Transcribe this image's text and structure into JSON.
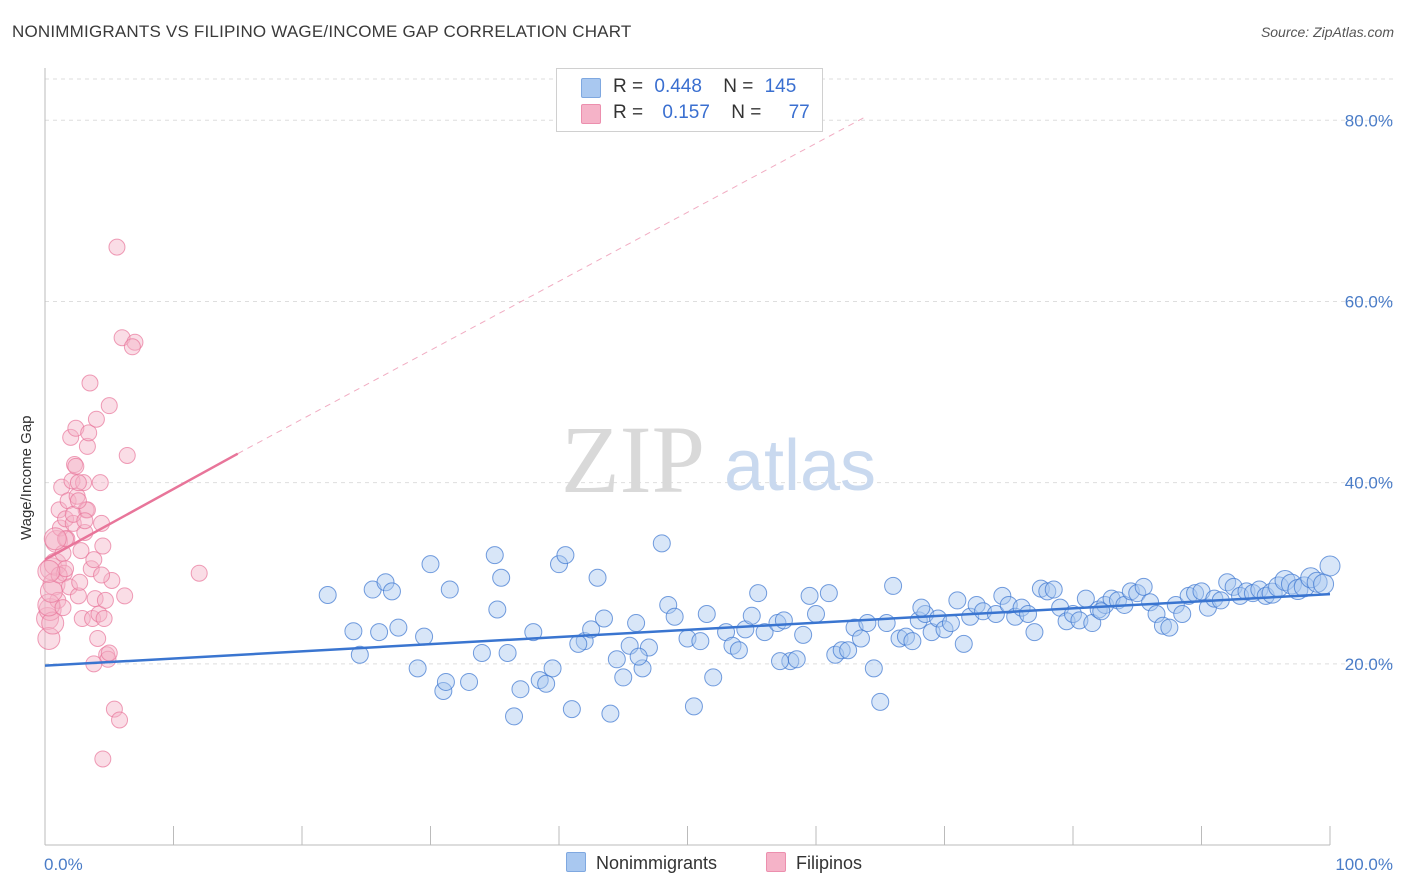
{
  "header": {
    "title": "NONIMMIGRANTS VS FILIPINO WAGE/INCOME GAP CORRELATION CHART",
    "source": "Source: ZipAtlas.com"
  },
  "watermark": {
    "zip": "ZIP",
    "atlas": "atlas"
  },
  "legend": {
    "rows": [
      {
        "r_label": "R =",
        "r_value": "0.448",
        "n_label": "N =",
        "n_value": "145",
        "color": "#a9c8f0"
      },
      {
        "r_label": "R =",
        "r_value": "0.157",
        "n_label": "N =",
        "n_value": "77",
        "color": "#f5b3c8"
      }
    ]
  },
  "bottom_legend": {
    "series1": "Nonimmigrants",
    "series2": "Filipinos"
  },
  "chart_data": {
    "type": "scatter",
    "title": "NONIMMIGRANTS VS FILIPINO WAGE/INCOME GAP CORRELATION CHART",
    "ylabel": "Wage/Income Gap",
    "xlabel": "",
    "xlim": [
      0,
      100
    ],
    "ylim": [
      0,
      85
    ],
    "x_tick_labels": [
      "0.0%",
      "100.0%"
    ],
    "y_ticks": [
      20,
      40,
      60,
      80
    ],
    "y_tick_labels": [
      "20.0%",
      "40.0%",
      "60.0%",
      "80.0%"
    ],
    "grid": true,
    "colors": {
      "nonimmigrants": "#3a75d0",
      "filipinos": "#e8759a",
      "nonimmigrants_fill": "#a9c8f0",
      "filipinos_fill": "#f5b3c8"
    },
    "series": [
      {
        "name": "Nonimmigrants",
        "trend": {
          "x": [
            0,
            100
          ],
          "y": [
            19.8,
            27.7
          ]
        },
        "points": [
          [
            22,
            27.6
          ],
          [
            24,
            23.6
          ],
          [
            24.5,
            21
          ],
          [
            25.5,
            28.2
          ],
          [
            26,
            23.5
          ],
          [
            26.5,
            29
          ],
          [
            27,
            28
          ],
          [
            27.5,
            24
          ],
          [
            29,
            19.5
          ],
          [
            29.5,
            23
          ],
          [
            30,
            31
          ],
          [
            31,
            17
          ],
          [
            31.2,
            18
          ],
          [
            31.5,
            28.2
          ],
          [
            33,
            18
          ],
          [
            34,
            21.2
          ],
          [
            35,
            32
          ],
          [
            35.2,
            26
          ],
          [
            35.5,
            29.5
          ],
          [
            36,
            21.2
          ],
          [
            36.5,
            14.2
          ],
          [
            37,
            17.2
          ],
          [
            38,
            23.5
          ],
          [
            38.5,
            18.2
          ],
          [
            39,
            17.8
          ],
          [
            39.5,
            19.5
          ],
          [
            40,
            31
          ],
          [
            40.5,
            32
          ],
          [
            41,
            15
          ],
          [
            42,
            22.5
          ],
          [
            42.5,
            23.8
          ],
          [
            43,
            29.5
          ],
          [
            43.5,
            25
          ],
          [
            44,
            14.5
          ],
          [
            44.5,
            20.5
          ],
          [
            45,
            18.5
          ],
          [
            45.5,
            22
          ],
          [
            46,
            24.5
          ],
          [
            46.5,
            19.5
          ],
          [
            47,
            21.8
          ],
          [
            48,
            33.3
          ],
          [
            48.5,
            26.5
          ],
          [
            49,
            25.2
          ],
          [
            50,
            22.8
          ],
          [
            50.5,
            15.3
          ],
          [
            51,
            22.5
          ],
          [
            51.5,
            25.5
          ],
          [
            52,
            18.5
          ],
          [
            53,
            23.5
          ],
          [
            53.5,
            22
          ],
          [
            54,
            21.5
          ],
          [
            54.5,
            23.8
          ],
          [
            55,
            25.3
          ],
          [
            55.5,
            27.8
          ],
          [
            56,
            23.5
          ],
          [
            57,
            24.5
          ],
          [
            57.5,
            24.8
          ],
          [
            58,
            20.3
          ],
          [
            58.5,
            20.5
          ],
          [
            59,
            23.2
          ],
          [
            59.5,
            27.5
          ],
          [
            60,
            25.5
          ],
          [
            61,
            27.8
          ],
          [
            61.5,
            21
          ],
          [
            62,
            21.5
          ],
          [
            62.5,
            21.5
          ],
          [
            63,
            24
          ],
          [
            64,
            24.5
          ],
          [
            64.5,
            19.5
          ],
          [
            65,
            15.8
          ],
          [
            65.5,
            24.5
          ],
          [
            66,
            28.6
          ],
          [
            66.5,
            22.8
          ],
          [
            67,
            23
          ],
          [
            67.5,
            22.5
          ],
          [
            68,
            24.8
          ],
          [
            68.5,
            25.5
          ],
          [
            69,
            23.5
          ],
          [
            69.5,
            25
          ],
          [
            70,
            23.8
          ],
          [
            70.5,
            24.5
          ],
          [
            71,
            27
          ],
          [
            71.5,
            22.2
          ],
          [
            72,
            25.2
          ],
          [
            72.5,
            26.5
          ],
          [
            73,
            25.8
          ],
          [
            74,
            25.5
          ],
          [
            74.5,
            27.5
          ],
          [
            75,
            26.5
          ],
          [
            75.5,
            25.2
          ],
          [
            76,
            26.2
          ],
          [
            76.5,
            25.5
          ],
          [
            77,
            23.5
          ],
          [
            77.5,
            28.3
          ],
          [
            78,
            28
          ],
          [
            78.5,
            28.2
          ],
          [
            79,
            26.2
          ],
          [
            79.5,
            24.7
          ],
          [
            80,
            25.5
          ],
          [
            80.5,
            24.8
          ],
          [
            81,
            27.2
          ],
          [
            81.5,
            24.5
          ],
          [
            82,
            26
          ],
          [
            82.5,
            26.5
          ],
          [
            83,
            27.2
          ],
          [
            83.5,
            27
          ],
          [
            84,
            26.5
          ],
          [
            84.5,
            28
          ],
          [
            85,
            27.8
          ],
          [
            85.5,
            28.5
          ],
          [
            86,
            26.8
          ],
          [
            86.5,
            25.5
          ],
          [
            87,
            24.2
          ],
          [
            87.5,
            24
          ],
          [
            88,
            26.5
          ],
          [
            88.5,
            25.5
          ],
          [
            89,
            27.5
          ],
          [
            89.5,
            27.8
          ],
          [
            90,
            28
          ],
          [
            90.5,
            26.2
          ],
          [
            91,
            27.2
          ],
          [
            91.5,
            27
          ],
          [
            92,
            29
          ],
          [
            92.5,
            28.5
          ],
          [
            93,
            27.5
          ],
          [
            93.5,
            28
          ],
          [
            94,
            27.8
          ],
          [
            94.5,
            28.2
          ],
          [
            95,
            27.5
          ],
          [
            95.5,
            27.8
          ],
          [
            96,
            28.5
          ],
          [
            96.5,
            29.2
          ],
          [
            97,
            28.8
          ],
          [
            97.5,
            28.2
          ],
          [
            98,
            28.5
          ],
          [
            98.5,
            29.5
          ],
          [
            99,
            29
          ],
          [
            99.5,
            28.8
          ],
          [
            100,
            30.8
          ],
          [
            41.5,
            22.2
          ],
          [
            46.2,
            20.8
          ],
          [
            57.2,
            20.3
          ],
          [
            63.5,
            22.8
          ],
          [
            68.2,
            26.2
          ],
          [
            82.2,
            25.8
          ]
        ]
      },
      {
        "name": "Filipinos",
        "trend": {
          "x": [
            0,
            15
          ],
          "y": [
            31.5,
            43.2
          ]
        },
        "trend_extension": {
          "x": [
            15,
            64
          ],
          "y": [
            43.2,
            80.5
          ]
        },
        "points": [
          [
            0.2,
            25
          ],
          [
            0.3,
            22.8
          ],
          [
            0.4,
            26
          ],
          [
            0.5,
            30.5
          ],
          [
            0.6,
            24.5
          ],
          [
            0.7,
            28.8
          ],
          [
            0.8,
            31
          ],
          [
            0.9,
            33.5
          ],
          [
            1,
            27
          ],
          [
            1.1,
            37
          ],
          [
            1.2,
            35
          ],
          [
            1.3,
            39.5
          ],
          [
            1.4,
            32.2
          ],
          [
            1.5,
            30
          ],
          [
            1.6,
            36
          ],
          [
            1.7,
            33.8
          ],
          [
            1.8,
            38
          ],
          [
            1.9,
            28.5
          ],
          [
            2,
            45
          ],
          [
            2.1,
            40.2
          ],
          [
            2.2,
            35.5
          ],
          [
            2.3,
            42
          ],
          [
            2.4,
            46
          ],
          [
            2.5,
            38.5
          ],
          [
            2.6,
            27.5
          ],
          [
            2.7,
            29
          ],
          [
            2.8,
            32.5
          ],
          [
            2.9,
            25
          ],
          [
            3,
            40
          ],
          [
            3.1,
            34.5
          ],
          [
            3.2,
            37
          ],
          [
            3.3,
            44
          ],
          [
            3.4,
            45.5
          ],
          [
            3.5,
            51
          ],
          [
            3.6,
            30.5
          ],
          [
            3.7,
            25
          ],
          [
            3.8,
            31.5
          ],
          [
            3.9,
            27.2
          ],
          [
            4,
            47
          ],
          [
            4.1,
            22.8
          ],
          [
            4.2,
            25.5
          ],
          [
            4.3,
            40
          ],
          [
            4.4,
            35.5
          ],
          [
            4.5,
            33
          ],
          [
            4.6,
            25
          ],
          [
            4.7,
            27
          ],
          [
            4.8,
            21
          ],
          [
            4.9,
            20.5
          ],
          [
            5,
            48.5
          ],
          [
            5.2,
            29.2
          ],
          [
            5.4,
            15
          ],
          [
            5.6,
            66
          ],
          [
            5.8,
            13.8
          ],
          [
            6,
            56
          ],
          [
            6.2,
            27.5
          ],
          [
            6.4,
            43
          ],
          [
            7,
            55.5
          ],
          [
            12,
            30
          ],
          [
            0.3,
            26.5
          ],
          [
            0.5,
            28
          ],
          [
            1.4,
            26.2
          ],
          [
            1.6,
            33.8
          ],
          [
            2.2,
            36.5
          ],
          [
            2.6,
            40
          ],
          [
            3.3,
            37
          ],
          [
            3.8,
            20
          ],
          [
            4.4,
            29.8
          ],
          [
            5,
            21.2
          ],
          [
            4.5,
            9.5
          ],
          [
            6.8,
            55
          ],
          [
            1.1,
            29.8
          ],
          [
            0.8,
            33.8
          ],
          [
            2.4,
            41.8
          ],
          [
            1.6,
            30.5
          ],
          [
            3.1,
            35.8
          ],
          [
            0.3,
            30.2
          ],
          [
            2.6,
            38
          ]
        ]
      }
    ]
  }
}
